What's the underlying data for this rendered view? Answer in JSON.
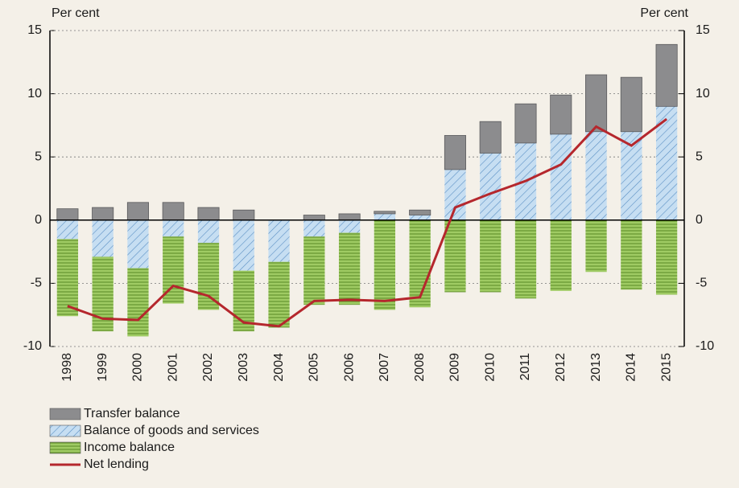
{
  "chart_data": {
    "type": "bar",
    "y_label": "Per cent",
    "y2_label": "Per cent",
    "categories": [
      "1998",
      "1999",
      "2000",
      "2001",
      "2002",
      "2003",
      "2004",
      "2005",
      "2006",
      "2007",
      "2008",
      "2009",
      "2010",
      "2011",
      "2012",
      "2013",
      "2014",
      "2015"
    ],
    "series": [
      {
        "name": "Transfer balance",
        "color": "#8c8c8e",
        "values": [
          0.9,
          1.0,
          1.4,
          1.4,
          1.0,
          0.8,
          0,
          0.4,
          0.5,
          0.2,
          0.4,
          2.7,
          2.5,
          3.1,
          3.1,
          4.5,
          4.3,
          4.9
        ]
      },
      {
        "name": "Balance of goods and services",
        "color": "#c6def2",
        "values": [
          -1.5,
          -2.9,
          -3.8,
          -1.3,
          -1.8,
          -4.0,
          -3.3,
          -1.3,
          -1.0,
          0.5,
          0.4,
          4.0,
          5.3,
          6.1,
          6.8,
          7.0,
          7.0,
          9.0
        ]
      },
      {
        "name": "Income balance",
        "color": "#9fcb63",
        "values": [
          -6.1,
          -5.9,
          -5.4,
          -5.3,
          -5.3,
          -4.8,
          -5.2,
          -5.4,
          -5.7,
          -7.1,
          -6.9,
          -5.7,
          -5.7,
          -6.2,
          -5.6,
          -4.1,
          -5.5,
          -5.9
        ]
      },
      {
        "name": "Net lending",
        "color": "#b5272d",
        "type": "line",
        "values": [
          -6.8,
          -7.8,
          -7.9,
          -5.2,
          -6.0,
          -8.1,
          -8.4,
          -6.4,
          -6.3,
          -6.4,
          -6.1,
          1.0,
          2.1,
          3.1,
          4.4,
          7.4,
          5.9,
          8.0
        ]
      }
    ],
    "ylim": [
      -10,
      15
    ],
    "yticks": [
      -10,
      -5,
      0,
      5,
      10,
      15
    ],
    "y2lim": [
      -10,
      15
    ],
    "y2ticks": [
      -10,
      -5,
      0,
      5,
      10,
      15
    ],
    "grid": true
  }
}
